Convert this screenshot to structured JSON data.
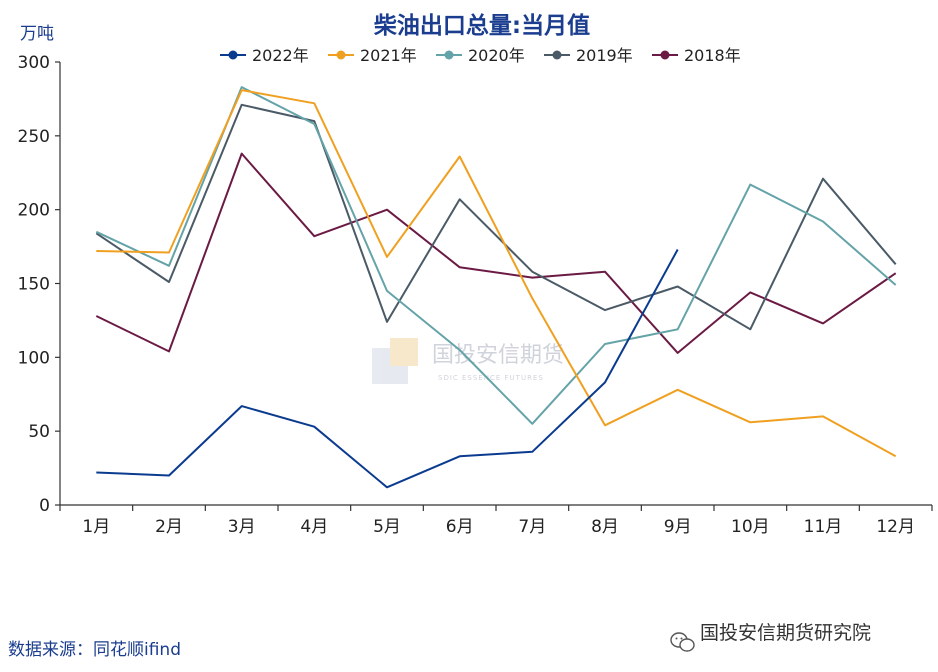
{
  "chart_data": {
    "type": "line",
    "title": "柴油出口总量:当月值",
    "unit_label": "万吨",
    "categories": [
      "1月",
      "2月",
      "3月",
      "4月",
      "5月",
      "6月",
      "7月",
      "8月",
      "9月",
      "10月",
      "11月",
      "12月"
    ],
    "ylim": [
      0,
      300
    ],
    "yticks": [
      0,
      50,
      100,
      150,
      200,
      250,
      300
    ],
    "legend_position": "top",
    "grid": false,
    "series": [
      {
        "name": "2022年",
        "color": "#0b3b8f",
        "values": [
          22,
          20,
          67,
          53,
          12,
          33,
          36,
          83,
          173,
          null,
          null,
          null
        ]
      },
      {
        "name": "2021年",
        "color": "#f0a020",
        "values": [
          172,
          171,
          281,
          272,
          168,
          236,
          140,
          54,
          78,
          56,
          60,
          33
        ]
      },
      {
        "name": "2020年",
        "color": "#64a3a8",
        "values": [
          185,
          162,
          283,
          258,
          145,
          105,
          55,
          109,
          119,
          217,
          192,
          149
        ]
      },
      {
        "name": "2019年",
        "color": "#4a5a66",
        "values": [
          184,
          151,
          271,
          260,
          124,
          207,
          158,
          132,
          148,
          119,
          221,
          163
        ]
      },
      {
        "name": "2018年",
        "color": "#6b1a44",
        "values": [
          128,
          104,
          238,
          182,
          200,
          161,
          154,
          158,
          103,
          144,
          123,
          157
        ]
      }
    ]
  },
  "footer": {
    "source": "数据来源：同花顺ifind",
    "credit": "国投安信期货研究院"
  },
  "watermark": {
    "name": "国投安信期货",
    "sub": "SDIC ESSENCE FUTURES"
  },
  "icons": {
    "credit_icon": "wechat-icon",
    "watermark_logo": "sdic-logo-icon"
  }
}
